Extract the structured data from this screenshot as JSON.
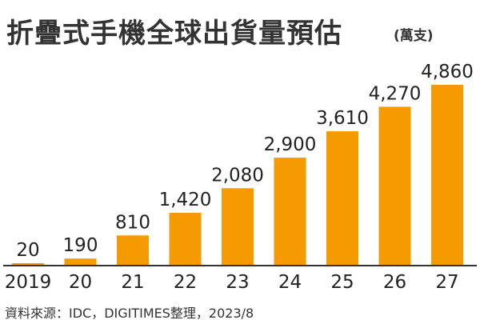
{
  "title": "折疊式手機全球出貨量預估",
  "unit": "(萬支)",
  "source": "資料來源：IDC，DIGITIMES整理，2023/8",
  "colors": {
    "bar": "#f59a00",
    "axis": "#333333",
    "text": "#222222"
  },
  "chart_data": {
    "type": "bar",
    "title": "折疊式手機全球出貨量預估",
    "ylabel": "(萬支)",
    "xlabel": "",
    "categories": [
      "2019",
      "20",
      "21",
      "22",
      "23",
      "24",
      "25",
      "26",
      "27"
    ],
    "values": [
      20,
      190,
      810,
      1420,
      2080,
      2900,
      3610,
      4270,
      4860
    ],
    "value_labels": [
      "20",
      "190",
      "810",
      "1,420",
      "2,080",
      "2,900",
      "3,610",
      "4,270",
      "4,860"
    ],
    "ylim": [
      0,
      4860
    ],
    "grid": false,
    "legend": "none"
  }
}
